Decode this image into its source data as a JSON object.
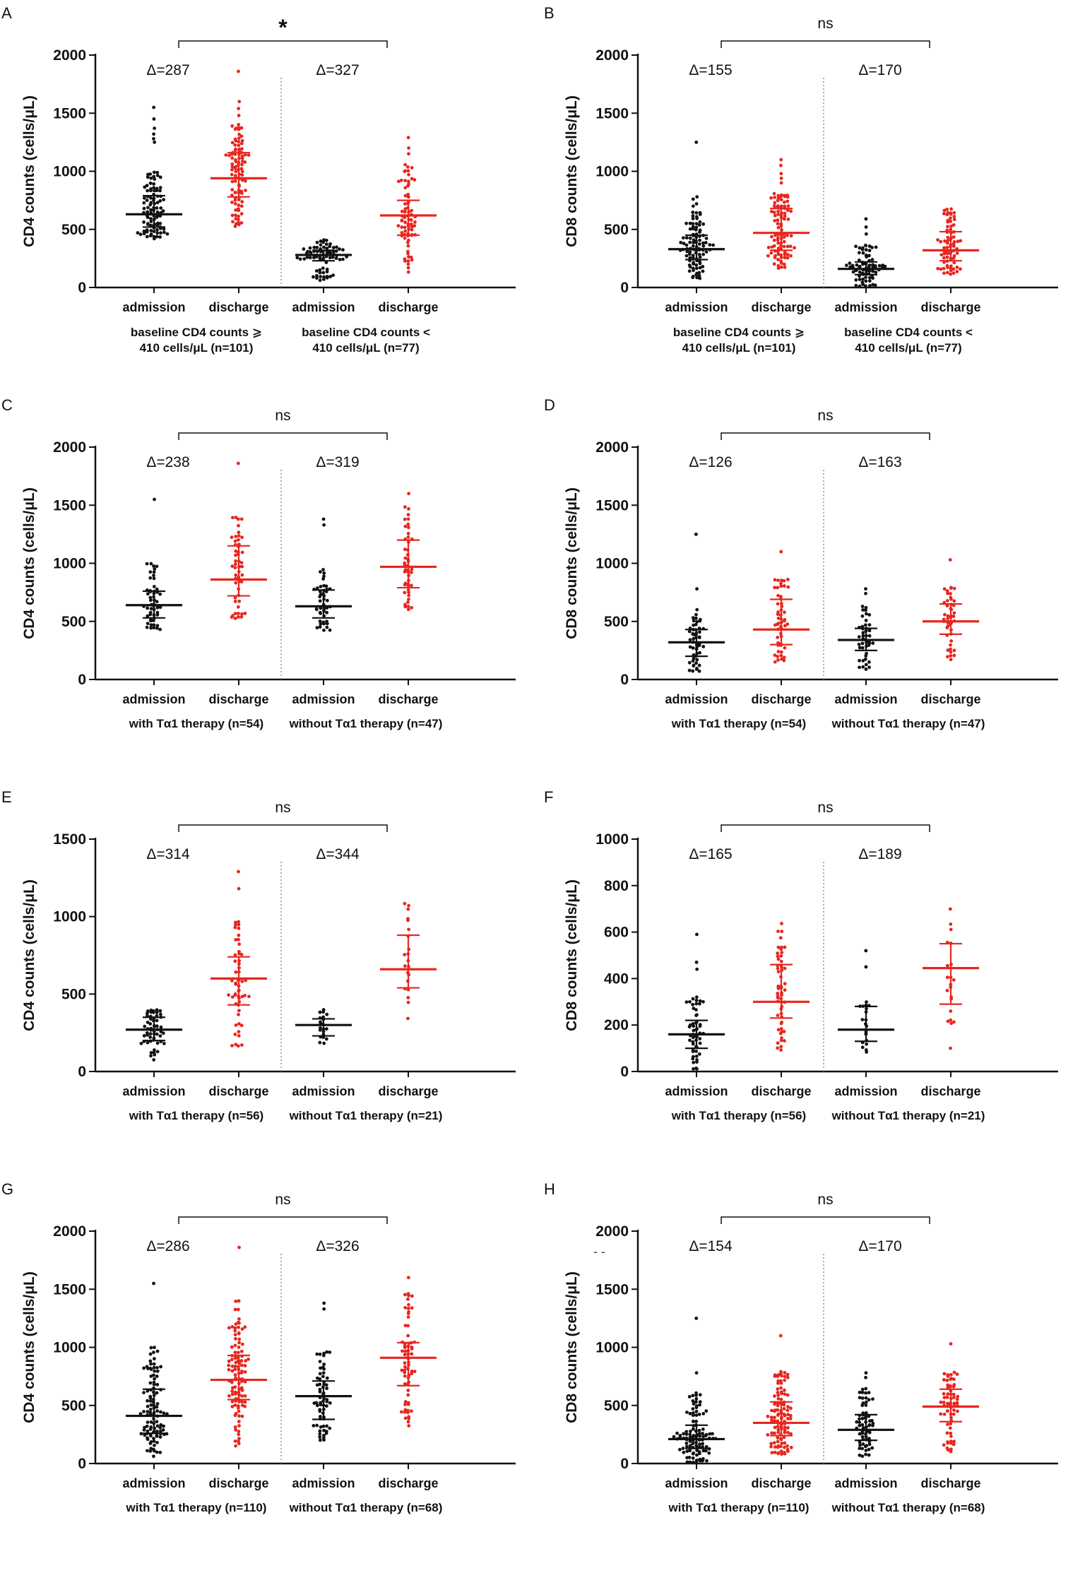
{
  "colors": {
    "admission": "#111111",
    "discharge": "#e8261f",
    "axis": "#111111",
    "divider": "#777777"
  },
  "categories": [
    "admission",
    "discharge",
    "admission",
    "discharge"
  ],
  "stray_mark": "- -",
  "chart_data": [
    {
      "type": "scatter",
      "panel": "A",
      "ylabel": "CD4 counts (cells/μL)",
      "ylim": [
        0,
        2000
      ],
      "yticks": [
        0,
        500,
        1000,
        1500,
        2000
      ],
      "categories": [
        "admission",
        "discharge",
        "admission",
        "discharge"
      ],
      "groups": [
        "baseline CD4 counts ⩾\n410 cells/μL (n=101)",
        "baseline CD4 counts <\n410 cells/μL (n=77)"
      ],
      "deltas": [
        "Δ=287",
        "Δ=327"
      ],
      "significance": "*",
      "series": [
        {
          "name": "admission",
          "median": 630,
          "q1": 520,
          "q3": 790,
          "n": 101,
          "min": 420,
          "max": 1000,
          "outliers": [
            1550,
            1450,
            1370,
            1320,
            1280,
            1250
          ]
        },
        {
          "name": "discharge",
          "median": 940,
          "q1": 780,
          "q3": 1160,
          "n": 101,
          "min": 520,
          "max": 1420,
          "outliers": [
            1860,
            1600,
            1540,
            1480
          ]
        },
        {
          "name": "admission",
          "median": 280,
          "q1": 230,
          "q3": 320,
          "n": 77,
          "min": 60,
          "max": 410,
          "outliers": []
        },
        {
          "name": "discharge",
          "median": 620,
          "q1": 450,
          "q3": 750,
          "n": 77,
          "min": 130,
          "max": 1060,
          "outliers": [
            1290,
            1200,
            1150
          ]
        }
      ]
    },
    {
      "type": "scatter",
      "panel": "B",
      "ylabel": "CD8 counts (cells/μL)",
      "ylim": [
        0,
        2000
      ],
      "yticks": [
        0,
        500,
        1000,
        1500,
        2000
      ],
      "categories": [
        "admission",
        "discharge",
        "admission",
        "discharge"
      ],
      "groups": [
        "baseline CD4 counts ⩾\n410 cells/μL (n=101)",
        "baseline CD4 counts <\n410 cells/μL (n=77)"
      ],
      "deltas": [
        "Δ=155",
        "Δ=170"
      ],
      "significance": "ns",
      "series": [
        {
          "name": "admission",
          "median": 330,
          "q1": 240,
          "q3": 450,
          "n": 101,
          "min": 60,
          "max": 650,
          "outliers": [
            1250,
            780,
            760,
            720,
            700
          ]
        },
        {
          "name": "discharge",
          "median": 470,
          "q1": 320,
          "q3": 680,
          "n": 101,
          "min": 150,
          "max": 820,
          "outliers": [
            1100,
            1050,
            980,
            940,
            900
          ]
        },
        {
          "name": "admission",
          "median": 160,
          "q1": 110,
          "q3": 220,
          "n": 77,
          "min": 10,
          "max": 380,
          "outliers": [
            590,
            520,
            460
          ]
        },
        {
          "name": "discharge",
          "median": 320,
          "q1": 230,
          "q3": 480,
          "n": 77,
          "min": 110,
          "max": 700,
          "outliers": []
        }
      ]
    },
    {
      "type": "scatter",
      "panel": "C",
      "ylabel": "CD4 counts (cells/μL)",
      "ylim": [
        0,
        2000
      ],
      "yticks": [
        0,
        500,
        1000,
        1500,
        2000
      ],
      "categories": [
        "admission",
        "discharge",
        "admission",
        "discharge"
      ],
      "groups": [
        "with Tα1 therapy (n=54)",
        "without Tα1 therapy (n=47)"
      ],
      "deltas": [
        "Δ=238",
        "Δ=319"
      ],
      "significance": "ns",
      "series": [
        {
          "name": "admission",
          "median": 640,
          "q1": 530,
          "q3": 760,
          "n": 54,
          "min": 420,
          "max": 1000,
          "outliers": [
            1550
          ]
        },
        {
          "name": "discharge",
          "median": 860,
          "q1": 720,
          "q3": 1150,
          "n": 54,
          "min": 520,
          "max": 1400,
          "outliers": [
            1860
          ]
        },
        {
          "name": "admission",
          "median": 630,
          "q1": 530,
          "q3": 770,
          "n": 47,
          "min": 420,
          "max": 960,
          "outliers": [
            1380,
            1330
          ]
        },
        {
          "name": "discharge",
          "median": 970,
          "q1": 790,
          "q3": 1200,
          "n": 47,
          "min": 560,
          "max": 1500,
          "outliers": [
            1600
          ]
        }
      ]
    },
    {
      "type": "scatter",
      "panel": "D",
      "ylabel": "CD8 counts (cells/μL)",
      "ylim": [
        0,
        2000
      ],
      "yticks": [
        0,
        500,
        1000,
        1500,
        2000
      ],
      "categories": [
        "admission",
        "discharge",
        "admission",
        "discharge"
      ],
      "groups": [
        "with Tα1 therapy (n=54)",
        "without Tα1 therapy (n=47)"
      ],
      "deltas": [
        "Δ=126",
        "Δ=163"
      ],
      "significance": "ns",
      "series": [
        {
          "name": "admission",
          "median": 320,
          "q1": 200,
          "q3": 430,
          "n": 54,
          "min": 60,
          "max": 620,
          "outliers": [
            1250,
            780
          ]
        },
        {
          "name": "discharge",
          "median": 430,
          "q1": 300,
          "q3": 690,
          "n": 54,
          "min": 150,
          "max": 870,
          "outliers": [
            1100
          ]
        },
        {
          "name": "admission",
          "median": 340,
          "q1": 250,
          "q3": 440,
          "n": 47,
          "min": 80,
          "max": 650,
          "outliers": [
            780,
            740
          ]
        },
        {
          "name": "discharge",
          "median": 500,
          "q1": 390,
          "q3": 650,
          "n": 47,
          "min": 170,
          "max": 800,
          "outliers": [
            1030
          ]
        }
      ]
    },
    {
      "type": "scatter",
      "panel": "E",
      "ylabel": "CD4 counts (cells/μL)",
      "ylim": [
        0,
        1500
      ],
      "yticks": [
        0,
        500,
        1000,
        1500
      ],
      "categories": [
        "admission",
        "discharge",
        "admission",
        "discharge"
      ],
      "groups": [
        "with Tα1 therapy (n=56)",
        "without Tα1 therapy (n=21)"
      ],
      "deltas": [
        "Δ=314",
        "Δ=344"
      ],
      "significance": "ns",
      "series": [
        {
          "name": "admission",
          "median": 270,
          "q1": 200,
          "q3": 350,
          "n": 56,
          "min": 60,
          "max": 400,
          "outliers": []
        },
        {
          "name": "discharge",
          "median": 600,
          "q1": 430,
          "q3": 740,
          "n": 56,
          "min": 140,
          "max": 970,
          "outliers": [
            1290,
            1180
          ]
        },
        {
          "name": "admission",
          "median": 300,
          "q1": 230,
          "q3": 340,
          "n": 21,
          "min": 180,
          "max": 400,
          "outliers": []
        },
        {
          "name": "discharge",
          "median": 660,
          "q1": 540,
          "q3": 880,
          "n": 21,
          "min": 320,
          "max": 1090,
          "outliers": []
        }
      ]
    },
    {
      "type": "scatter",
      "panel": "F",
      "ylabel": "CD8 counts (cells/μL)",
      "ylim": [
        0,
        1000
      ],
      "yticks": [
        0,
        200,
        400,
        600,
        800,
        1000
      ],
      "categories": [
        "admission",
        "discharge",
        "admission",
        "discharge"
      ],
      "groups": [
        "with Tα1 therapy (n=56)",
        "without Tα1 therapy (n=21)"
      ],
      "deltas": [
        "Δ=165",
        "Δ=189"
      ],
      "significance": "ns",
      "series": [
        {
          "name": "admission",
          "median": 160,
          "q1": 100,
          "q3": 220,
          "n": 56,
          "min": 10,
          "max": 330,
          "outliers": [
            590,
            470,
            440
          ]
        },
        {
          "name": "discharge",
          "median": 300,
          "q1": 230,
          "q3": 460,
          "n": 56,
          "min": 80,
          "max": 660,
          "outliers": []
        },
        {
          "name": "admission",
          "median": 180,
          "q1": 130,
          "q3": 280,
          "n": 21,
          "min": 60,
          "max": 300,
          "outliers": [
            520,
            450
          ]
        },
        {
          "name": "discharge",
          "median": 445,
          "q1": 290,
          "q3": 550,
          "n": 21,
          "min": 180,
          "max": 710,
          "outliers": [
            100
          ]
        }
      ]
    },
    {
      "type": "scatter",
      "panel": "G",
      "ylabel": "CD4 counts (cells/μL)",
      "ylim": [
        0,
        2000
      ],
      "yticks": [
        0,
        500,
        1000,
        1500,
        2000
      ],
      "categories": [
        "admission",
        "discharge",
        "admission",
        "discharge"
      ],
      "groups": [
        "with Tα1 therapy (n=110)",
        "without Tα1 therapy (n=68)"
      ],
      "deltas": [
        "Δ=286",
        "Δ=326"
      ],
      "significance": "ns",
      "series": [
        {
          "name": "admission",
          "median": 410,
          "q1": 260,
          "q3": 640,
          "n": 110,
          "min": 60,
          "max": 1000,
          "outliers": [
            1550
          ]
        },
        {
          "name": "discharge",
          "median": 720,
          "q1": 550,
          "q3": 930,
          "n": 110,
          "min": 140,
          "max": 1400,
          "outliers": [
            1860
          ]
        },
        {
          "name": "admission",
          "median": 580,
          "q1": 380,
          "q3": 710,
          "n": 68,
          "min": 180,
          "max": 960,
          "outliers": [
            1380,
            1330
          ]
        },
        {
          "name": "discharge",
          "median": 910,
          "q1": 670,
          "q3": 1040,
          "n": 68,
          "min": 320,
          "max": 1500,
          "outliers": [
            1600
          ]
        }
      ]
    },
    {
      "type": "scatter",
      "panel": "H",
      "ylabel": "CD8 counts (cells/μL)",
      "ylim": [
        0,
        2000
      ],
      "yticks": [
        0,
        500,
        1000,
        1500,
        2000
      ],
      "categories": [
        "admission",
        "discharge",
        "admission",
        "discharge"
      ],
      "groups": [
        "with Tα1 therapy (n=110)",
        "without Tα1 therapy (n=68)"
      ],
      "deltas": [
        "Δ=154",
        "Δ=170"
      ],
      "significance": "ns",
      "series": [
        {
          "name": "admission",
          "median": 210,
          "q1": 130,
          "q3": 330,
          "n": 110,
          "min": 10,
          "max": 620,
          "outliers": [
            1250,
            780
          ]
        },
        {
          "name": "discharge",
          "median": 350,
          "q1": 240,
          "q3": 530,
          "n": 110,
          "min": 80,
          "max": 870,
          "outliers": [
            1100
          ]
        },
        {
          "name": "admission",
          "median": 290,
          "q1": 200,
          "q3": 420,
          "n": 68,
          "min": 60,
          "max": 650,
          "outliers": [
            780,
            740
          ]
        },
        {
          "name": "discharge",
          "median": 490,
          "q1": 360,
          "q3": 640,
          "n": 68,
          "min": 100,
          "max": 800,
          "outliers": [
            1030
          ]
        }
      ]
    }
  ]
}
